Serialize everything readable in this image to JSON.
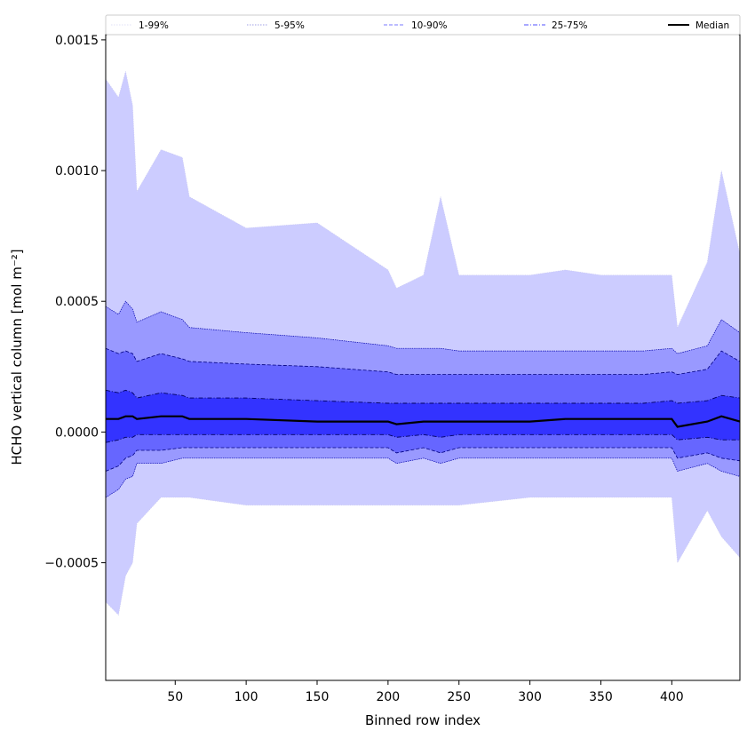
{
  "chart_data": {
    "type": "area",
    "xlabel": "Binned row index",
    "ylabel": "HCHO vertical column [mol m⁻²]",
    "xlim": [
      1,
      448
    ],
    "ylim": [
      -0.00095,
      0.00152
    ],
    "xticks": [
      50,
      100,
      150,
      200,
      250,
      300,
      350,
      400
    ],
    "yticks": [
      {
        "value": 0.0015,
        "label": "0.0015"
      },
      {
        "value": 0.001,
        "label": "0.0010"
      },
      {
        "value": 0.0005,
        "label": "0.0005"
      },
      {
        "value": 0.0,
        "label": "0.0000"
      },
      {
        "value": -0.0005,
        "label": "−0.0005"
      }
    ],
    "legend_position": "top",
    "legend": [
      {
        "label": "1-99%",
        "color": "#d6d6f5",
        "style": "dotted"
      },
      {
        "label": "5-95%",
        "color": "#8080dd",
        "style": "dotted"
      },
      {
        "label": "10-90%",
        "color": "#4d4dff",
        "style": "dashed"
      },
      {
        "label": "25-75%",
        "color": "#1a1aff",
        "style": "dashdot"
      },
      {
        "label": "Median",
        "color": "#000000",
        "style": "solid"
      }
    ],
    "fill_colors": {
      "band_1_99": "#ccccff",
      "band_5_95": "#9999ff",
      "band_10_90": "#6666ff",
      "band_25_75": "#3333ff"
    },
    "x": [
      1,
      10,
      15,
      20,
      23,
      40,
      55,
      60,
      100,
      150,
      200,
      206,
      225,
      237,
      250,
      300,
      325,
      350,
      380,
      400,
      404,
      425,
      435,
      448
    ],
    "series": [
      {
        "name": "1-99%",
        "role": "upper",
        "values": [
          0.00135,
          0.00128,
          0.00138,
          0.00125,
          0.00092,
          0.00108,
          0.00105,
          0.0009,
          0.00078,
          0.0008,
          0.00062,
          0.00055,
          0.0006,
          0.0009,
          0.0006,
          0.0006,
          0.00062,
          0.0006,
          0.0006,
          0.0006,
          0.0004,
          0.00065,
          0.001,
          0.00068
        ]
      },
      {
        "name": "1-99%",
        "role": "lower",
        "values": [
          -0.00065,
          -0.0007,
          -0.00055,
          -0.0005,
          -0.00035,
          -0.00025,
          -0.00025,
          -0.00025,
          -0.00028,
          -0.00028,
          -0.00028,
          -0.00028,
          -0.00028,
          -0.00028,
          -0.00028,
          -0.00025,
          -0.00025,
          -0.00025,
          -0.00025,
          -0.00025,
          -0.0005,
          -0.0003,
          -0.0004,
          -0.00048
        ]
      },
      {
        "name": "5-95%",
        "role": "upper",
        "values": [
          0.00048,
          0.00045,
          0.0005,
          0.00047,
          0.00042,
          0.00046,
          0.00043,
          0.0004,
          0.00038,
          0.00036,
          0.00033,
          0.00032,
          0.00032,
          0.00032,
          0.00031,
          0.00031,
          0.00031,
          0.00031,
          0.00031,
          0.00032,
          0.0003,
          0.00033,
          0.00043,
          0.00038
        ]
      },
      {
        "name": "5-95%",
        "role": "lower",
        "values": [
          -0.00025,
          -0.00022,
          -0.00018,
          -0.00017,
          -0.00012,
          -0.00012,
          -0.0001,
          -0.0001,
          -0.0001,
          -0.0001,
          -0.0001,
          -0.00012,
          -0.0001,
          -0.00012,
          -0.0001,
          -0.0001,
          -0.0001,
          -0.0001,
          -0.0001,
          -0.0001,
          -0.00015,
          -0.00012,
          -0.00015,
          -0.00017
        ]
      },
      {
        "name": "10-90%",
        "role": "upper",
        "values": [
          0.00032,
          0.0003,
          0.00031,
          0.0003,
          0.00027,
          0.0003,
          0.00028,
          0.00027,
          0.00026,
          0.00025,
          0.00023,
          0.00022,
          0.00022,
          0.00022,
          0.00022,
          0.00022,
          0.00022,
          0.00022,
          0.00022,
          0.00023,
          0.00022,
          0.00024,
          0.00031,
          0.00027
        ]
      },
      {
        "name": "10-90%",
        "role": "lower",
        "values": [
          -0.00015,
          -0.00013,
          -0.0001,
          -9e-05,
          -7e-05,
          -7e-05,
          -6e-05,
          -6e-05,
          -6e-05,
          -6e-05,
          -6e-05,
          -8e-05,
          -6e-05,
          -8e-05,
          -6e-05,
          -6e-05,
          -6e-05,
          -6e-05,
          -6e-05,
          -6e-05,
          -0.0001,
          -8e-05,
          -0.0001,
          -0.00011
        ]
      },
      {
        "name": "25-75%",
        "role": "upper",
        "values": [
          0.00016,
          0.00015,
          0.00016,
          0.00015,
          0.00013,
          0.00015,
          0.00014,
          0.00013,
          0.00013,
          0.00012,
          0.00011,
          0.00011,
          0.00011,
          0.00011,
          0.00011,
          0.00011,
          0.00011,
          0.00011,
          0.00011,
          0.00012,
          0.00011,
          0.00012,
          0.00014,
          0.00013
        ]
      },
      {
        "name": "25-75%",
        "role": "lower",
        "values": [
          -4e-05,
          -3e-05,
          -2e-05,
          -2e-05,
          -1e-05,
          -1e-05,
          -1e-05,
          -1e-05,
          -1e-05,
          -1e-05,
          -1e-05,
          -2e-05,
          -1e-05,
          -2e-05,
          -1e-05,
          -1e-05,
          -1e-05,
          -1e-05,
          -1e-05,
          -1e-05,
          -3e-05,
          -2e-05,
          -3e-05,
          -3e-05
        ]
      },
      {
        "name": "Median",
        "role": "line",
        "values": [
          5e-05,
          5e-05,
          6e-05,
          6e-05,
          5e-05,
          6e-05,
          6e-05,
          5e-05,
          5e-05,
          4e-05,
          4e-05,
          3e-05,
          4e-05,
          4e-05,
          4e-05,
          4e-05,
          5e-05,
          5e-05,
          5e-05,
          5e-05,
          2e-05,
          4e-05,
          6e-05,
          4e-05
        ]
      }
    ]
  }
}
